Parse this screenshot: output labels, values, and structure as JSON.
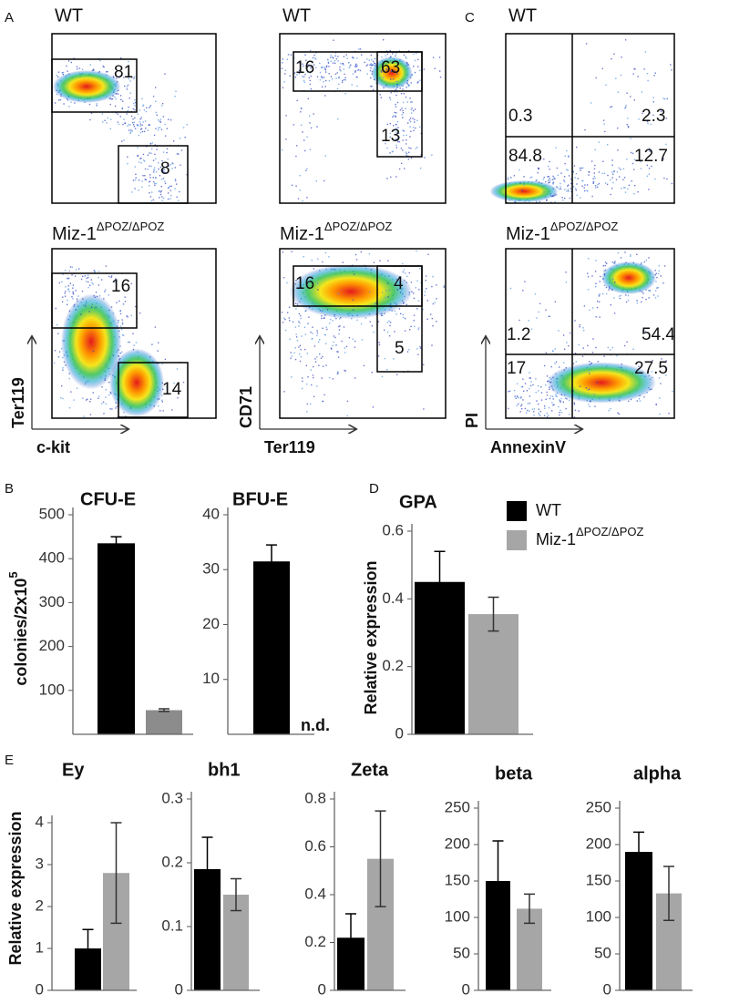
{
  "panel_labels": [
    "A",
    "B",
    "C",
    "D",
    "E"
  ],
  "flow_cytometry": {
    "wt_label": "WT",
    "mutant_label": {
      "text": "Miz-1",
      "sup": "ΔPOZ/ΔPOZ"
    },
    "plots": [
      {
        "x_label": "c-kit",
        "y_label": "Ter119",
        "wt_gates": [
          81,
          8
        ],
        "mutant_gates": [
          16,
          14
        ]
      },
      {
        "x_label": "Ter119",
        "y_label": "CD71",
        "wt_gates": [
          16,
          63,
          13
        ],
        "mutant_gates": [
          16,
          4,
          5
        ]
      },
      {
        "x_label": "AnnexinV",
        "y_label": "PI",
        "wt_gates": [
          0.3,
          2.3,
          84.8,
          12.7
        ],
        "mutant_gates": [
          1.2,
          54.4,
          17,
          27.5
        ]
      }
    ]
  },
  "chart_data": [
    {
      "type": "bar",
      "title": "CFU-E",
      "y_label": {
        "text": "colonies/2x10",
        "sup": "5"
      },
      "ylim": [
        0,
        500
      ],
      "yticks": [
        100,
        200,
        300,
        400,
        500
      ],
      "series": [
        {
          "color": "#000000",
          "values": [
            435
          ],
          "errors": [
            15
          ]
        },
        {
          "color": "#8c8c8c",
          "values": [
            55
          ],
          "errors": [
            3
          ]
        }
      ]
    },
    {
      "type": "bar",
      "title": "BFU-E",
      "ylim": [
        0,
        40
      ],
      "yticks": [
        10,
        20,
        30,
        40
      ],
      "annotation": "n.d.",
      "series": [
        {
          "color": "#000000",
          "values": [
            31.5
          ],
          "errors": [
            3
          ]
        },
        {
          "color": "#8c8c8c",
          "values": [
            null
          ],
          "errors": [
            null
          ]
        }
      ]
    },
    {
      "type": "bar",
      "title": "GPA",
      "y_label": {
        "text": "Relative expression"
      },
      "ylim": [
        0,
        0.6
      ],
      "yticks": [
        0,
        0.2,
        0.4,
        0.6
      ],
      "legend": "upper right",
      "series": [
        {
          "name": "WT",
          "color": "#000000",
          "values": [
            0.45
          ],
          "errors": [
            0.09
          ]
        },
        {
          "name": "Miz-1",
          "name_sup": "ΔPOZ/ΔPOZ",
          "color": "#a6a6a6",
          "values": [
            0.355
          ],
          "errors": [
            0.05
          ]
        }
      ]
    },
    {
      "type": "bar",
      "title": "Ey",
      "y_label": {
        "text": "Relative expression"
      },
      "ylim": [
        0,
        4
      ],
      "yticks": [
        0,
        1,
        2,
        3,
        4
      ],
      "series": [
        {
          "color": "#000000",
          "values": [
            1.0
          ],
          "errors": [
            0.45
          ]
        },
        {
          "color": "#a6a6a6",
          "values": [
            2.8
          ],
          "errors": [
            1.2
          ]
        }
      ]
    },
    {
      "type": "bar",
      "title": "bh1",
      "ylim": [
        0,
        0.3
      ],
      "yticks": [
        0,
        0.1,
        0.2,
        0.3
      ],
      "series": [
        {
          "color": "#000000",
          "values": [
            0.19
          ],
          "errors": [
            0.05
          ]
        },
        {
          "color": "#a6a6a6",
          "values": [
            0.15
          ],
          "errors": [
            0.025
          ]
        }
      ]
    },
    {
      "type": "bar",
      "title": "Zeta",
      "ylim": [
        0,
        0.8
      ],
      "yticks": [
        0,
        0.2,
        0.4,
        0.6,
        0.8
      ],
      "series": [
        {
          "color": "#000000",
          "values": [
            0.22
          ],
          "errors": [
            0.1
          ]
        },
        {
          "color": "#a6a6a6",
          "values": [
            0.55
          ],
          "errors": [
            0.2
          ]
        }
      ]
    },
    {
      "type": "bar",
      "title": "beta",
      "ylim": [
        0,
        250
      ],
      "yticks": [
        0,
        50,
        100,
        150,
        200,
        250
      ],
      "series": [
        {
          "color": "#000000",
          "values": [
            150
          ],
          "errors": [
            55
          ]
        },
        {
          "color": "#a6a6a6",
          "values": [
            112
          ],
          "errors": [
            20
          ]
        }
      ]
    },
    {
      "type": "bar",
      "title": "alpha",
      "ylim": [
        0,
        250
      ],
      "yticks": [
        0,
        50,
        100,
        150,
        200,
        250
      ],
      "series": [
        {
          "color": "#000000",
          "values": [
            190
          ],
          "errors": [
            27
          ]
        },
        {
          "color": "#a6a6a6",
          "values": [
            133
          ],
          "errors": [
            37
          ]
        }
      ]
    }
  ]
}
